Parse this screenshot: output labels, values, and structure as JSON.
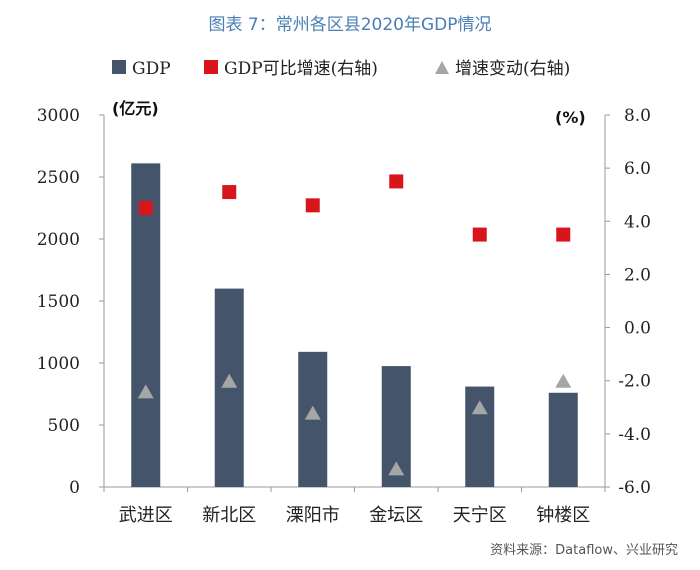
{
  "title": "图表 7：常州各区县2020年GDP情况",
  "source": "资料来源：Dataflow、兴业研究",
  "colors": {
    "bar": "#44546a",
    "growth": "#d9151c",
    "change": "#a6a6a6"
  },
  "chart_data": {
    "type": "bar",
    "categories": [
      "武进区",
      "新北区",
      "溧阳市",
      "金坛区",
      "天宁区",
      "钟楼区"
    ],
    "series": [
      {
        "name": "GDP",
        "type": "bar",
        "axis": "left",
        "values": [
          2610,
          1600,
          1090,
          975,
          810,
          760
        ]
      },
      {
        "name": "GDP可比增速(右轴)",
        "type": "scatter",
        "marker": "square",
        "axis": "right",
        "values": [
          4.5,
          5.1,
          4.6,
          5.5,
          3.5,
          3.5
        ]
      },
      {
        "name": "增速变动(右轴)",
        "type": "scatter",
        "marker": "triangle",
        "axis": "right",
        "values": [
          -2.4,
          -2.0,
          -3.2,
          -5.3,
          -3.0,
          -2.0
        ]
      }
    ],
    "left_axis": {
      "unit": "(亿元)",
      "ylim": [
        0,
        3000
      ],
      "ticks": [
        "0",
        "500",
        "1000",
        "1500",
        "2000",
        "2500",
        "3000"
      ]
    },
    "right_axis": {
      "unit": "(%)",
      "ylim": [
        -6,
        8
      ],
      "ticks": [
        "-6.0",
        "-4.0",
        "-2.0",
        "0.0",
        "2.0",
        "4.0",
        "6.0",
        "8.0"
      ]
    },
    "legend_position": "top",
    "grid": false
  }
}
